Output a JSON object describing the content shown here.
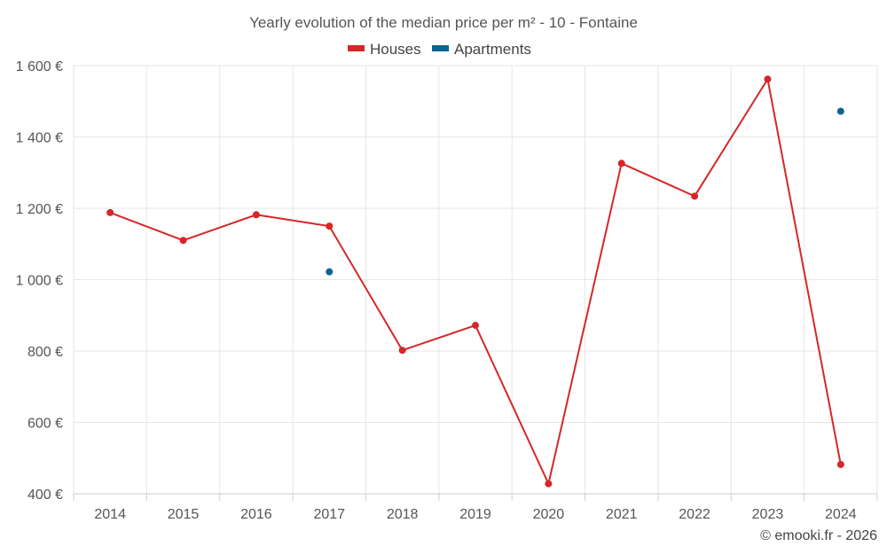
{
  "chart_data": {
    "type": "line",
    "title": "Yearly evolution of the median price per m² - 10 - Fontaine",
    "xlabel": "",
    "ylabel": "",
    "categories": [
      "2014",
      "2015",
      "2016",
      "2017",
      "2018",
      "2019",
      "2020",
      "2021",
      "2022",
      "2023",
      "2024"
    ],
    "ylim": [
      400,
      1600
    ],
    "yticks": [
      400,
      600,
      800,
      1000,
      1200,
      1400,
      1600
    ],
    "ytick_labels": [
      "400 €",
      "600 €",
      "800 €",
      "1 000 €",
      "1 200 €",
      "1 400 €",
      "1 600 €"
    ],
    "grid": true,
    "legend_position": "top-center",
    "series": [
      {
        "name": "Houses",
        "color": "#d62728",
        "line": true,
        "values": [
          1188,
          1110,
          1182,
          1150,
          802,
          872,
          428,
          1326,
          1234,
          1562,
          482
        ]
      },
      {
        "name": "Apartments",
        "color": "#0b6396",
        "line": false,
        "values": [
          null,
          null,
          null,
          1022,
          null,
          null,
          null,
          null,
          null,
          null,
          1472
        ]
      }
    ]
  },
  "credit": "© emooki.fr - 2026"
}
